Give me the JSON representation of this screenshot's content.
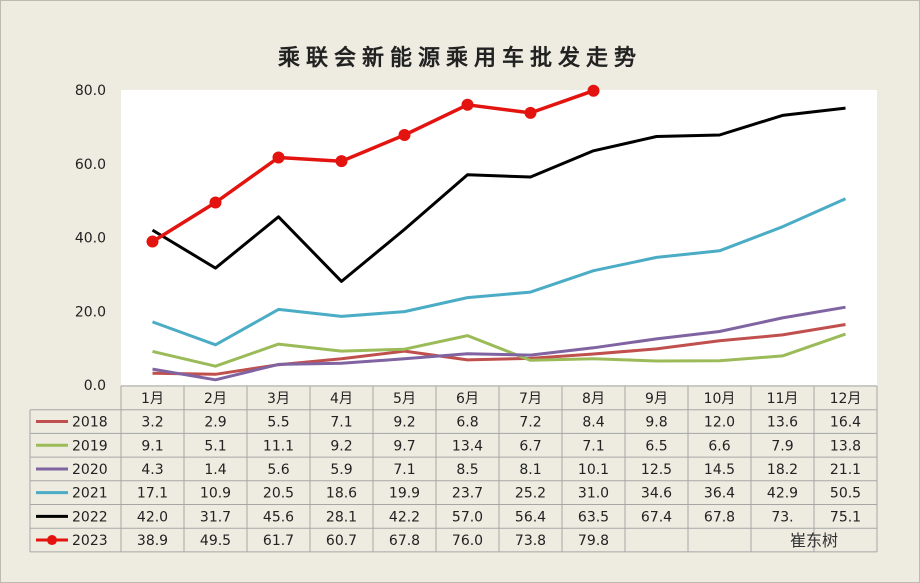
{
  "chart_data": {
    "type": "line",
    "title": "乘联会新能源乘用车批发走势",
    "categories": [
      "1月",
      "2月",
      "3月",
      "4月",
      "5月",
      "6月",
      "7月",
      "8月",
      "9月",
      "10月",
      "11月",
      "12月"
    ],
    "y_ticks": [
      "0.0",
      "20.0",
      "40.0",
      "60.0",
      "80.0"
    ],
    "ylim": [
      0,
      80
    ],
    "grid": false,
    "legend": "table-below",
    "series": [
      {
        "name": "2018",
        "color": "#c0504d",
        "markers": false,
        "values": [
          3.2,
          2.9,
          5.5,
          7.1,
          9.2,
          6.8,
          7.2,
          8.4,
          9.8,
          12.0,
          13.6,
          16.4
        ],
        "labels": [
          "3.2",
          "2.9",
          "5.5",
          "7.1",
          "9.2",
          "6.8",
          "7.2",
          "8.4",
          "9.8",
          "12.0",
          "13.6",
          "16.4"
        ]
      },
      {
        "name": "2019",
        "color": "#9bbb59",
        "markers": false,
        "values": [
          9.1,
          5.1,
          11.1,
          9.2,
          9.7,
          13.4,
          6.7,
          7.1,
          6.5,
          6.6,
          7.9,
          13.8
        ],
        "labels": [
          "9.1",
          "5.1",
          "11.1",
          "9.2",
          "9.7",
          "13.4",
          "6.7",
          "7.1",
          "6.5",
          "6.6",
          "7.9",
          "13.8"
        ]
      },
      {
        "name": "2020",
        "color": "#8064a2",
        "markers": false,
        "values": [
          4.3,
          1.4,
          5.6,
          5.9,
          7.1,
          8.5,
          8.1,
          10.1,
          12.5,
          14.5,
          18.2,
          21.1
        ],
        "labels": [
          "4.3",
          "1.4",
          "5.6",
          "5.9",
          "7.1",
          "8.5",
          "8.1",
          "10.1",
          "12.5",
          "14.5",
          "18.2",
          "21.1"
        ]
      },
      {
        "name": "2021",
        "color": "#4bacc6",
        "markers": false,
        "values": [
          17.1,
          10.9,
          20.5,
          18.6,
          19.9,
          23.7,
          25.2,
          31.0,
          34.6,
          36.4,
          42.9,
          50.5
        ],
        "labels": [
          "17.1",
          "10.9",
          "20.5",
          "18.6",
          "19.9",
          "23.7",
          "25.2",
          "31.0",
          "34.6",
          "36.4",
          "42.9",
          "50.5"
        ]
      },
      {
        "name": "2022",
        "color": "#000000",
        "markers": false,
        "values": [
          42.0,
          31.7,
          45.6,
          28.1,
          42.2,
          57.0,
          56.4,
          63.5,
          67.4,
          67.8,
          73.1,
          75.1
        ],
        "labels": [
          "42.0",
          "31.7",
          "45.6",
          "28.1",
          "42.2",
          "57.0",
          "56.4",
          "63.5",
          "67.4",
          "67.8",
          "73.",
          "75.1"
        ]
      },
      {
        "name": "2023",
        "color": "#e3140f",
        "markers": true,
        "values": [
          38.9,
          49.5,
          61.7,
          60.7,
          67.8,
          76.0,
          73.8,
          79.8,
          null,
          null,
          null,
          null
        ],
        "labels": [
          "38.9",
          "49.5",
          "61.7",
          "60.7",
          "67.8",
          "76.0",
          "73.8",
          "79.8",
          "",
          "",
          "",
          ""
        ]
      }
    ]
  },
  "watermark": "崔东树"
}
